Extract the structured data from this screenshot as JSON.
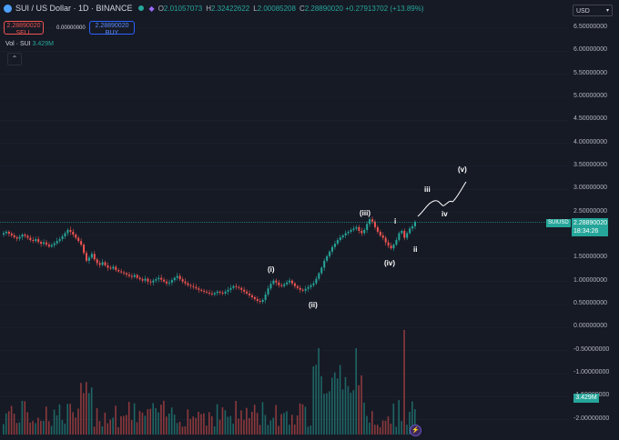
{
  "header": {
    "symbol": "SUI / US Dollar · 1D · BINANCE",
    "ohlc": [
      {
        "key": "O",
        "value": "2.01057073"
      },
      {
        "key": "H",
        "value": "2.32422622"
      },
      {
        "key": "L",
        "value": "2.00085208"
      },
      {
        "key": "C",
        "value": "2.28890020 +0.27913702 (+13.89%)"
      }
    ]
  },
  "trade": {
    "sell_price": "2.28890020",
    "sell_label": "SELL",
    "spread": "0.00000000",
    "buy_price": "2.28890020",
    "buy_label": "BUY"
  },
  "volume_legend": {
    "label": "Vol · SUI",
    "value": "3.429M"
  },
  "currency": "USD",
  "axis": {
    "price_ticks": [
      "6.50000000",
      "6.00000000",
      "5.50000000",
      "5.00000000",
      "4.50000000",
      "4.00000000",
      "3.50000000",
      "3.00000000",
      "2.50000000",
      "2.00000000",
      "1.50000000",
      "1.00000000",
      "0.50000000",
      "0.00000000",
      "-0.50000000",
      "-1.00000000",
      "-1.50000000",
      "-2.00000000"
    ]
  },
  "last_price": {
    "symbol": "SUIUSD",
    "price": "2.28890020",
    "countdown": "18:34:26"
  },
  "volume_tag": "3.429M",
  "waves": {
    "i_small": "(i)",
    "ii_small": "(ii)",
    "iii_small": "(iii)",
    "iv_small": "(iv)",
    "v_small": "(v)",
    "i": "i",
    "ii": "ii",
    "iii": "iii",
    "iv": "iv"
  },
  "colors": {
    "up": "#26a69a",
    "down": "#ef5350",
    "background": "#161a25"
  },
  "chart_data": {
    "type": "candlestick",
    "closes": [
      2.05,
      2.08,
      2.04,
      2.0,
      1.96,
      1.93,
      1.97,
      2.02,
      1.99,
      1.95,
      1.9,
      1.88,
      1.92,
      1.86,
      1.82,
      1.85,
      1.8,
      1.76,
      1.79,
      1.83,
      1.88,
      1.92,
      1.98,
      2.05,
      2.12,
      2.08,
      2.02,
      1.95,
      1.88,
      1.8,
      1.62,
      1.45,
      1.52,
      1.6,
      1.48,
      1.4,
      1.36,
      1.42,
      1.35,
      1.3,
      1.28,
      1.32,
      1.25,
      1.22,
      1.2,
      1.18,
      1.15,
      1.12,
      1.1,
      1.14,
      1.08,
      1.05,
      1.02,
      1.06,
      1.0,
      0.98,
      1.02,
      1.05,
      1.08,
      1.04,
      1.0,
      0.96,
      0.98,
      1.03,
      1.08,
      1.12,
      1.05,
      1.0,
      0.96,
      0.92,
      0.9,
      0.88,
      0.85,
      0.82,
      0.8,
      0.78,
      0.76,
      0.74,
      0.72,
      0.75,
      0.78,
      0.76,
      0.74,
      0.78,
      0.82,
      0.86,
      0.9,
      0.88,
      0.86,
      0.82,
      0.78,
      0.74,
      0.7,
      0.66,
      0.62,
      0.58,
      0.56,
      0.6,
      0.72,
      0.85,
      0.95,
      1.02,
      0.98,
      0.92,
      0.9,
      0.94,
      0.98,
      1.02,
      0.96,
      0.9,
      0.86,
      0.82,
      0.8,
      0.84,
      0.88,
      0.92,
      0.96,
      1.06,
      1.18,
      1.3,
      1.45,
      1.55,
      1.65,
      1.75,
      1.82,
      1.9,
      1.96,
      2.0,
      2.05,
      2.08,
      2.12,
      2.15,
      2.18,
      2.1,
      2.05,
      2.12,
      2.25,
      2.35,
      2.3,
      2.18,
      2.08,
      2.0,
      1.95,
      1.85,
      1.78,
      1.72,
      1.8,
      1.9,
      2.05,
      2.1,
      1.95,
      2.05,
      2.15,
      2.2,
      2.29
    ],
    "current_close": 2.2889002,
    "volume_last": "3.429M",
    "ylim": [
      -2.0,
      6.5
    ]
  }
}
